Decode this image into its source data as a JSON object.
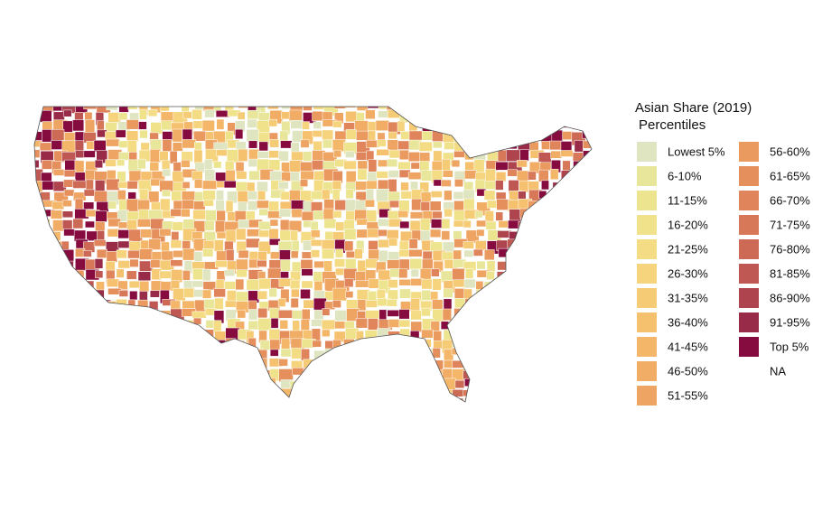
{
  "map": {
    "type": "choropleth",
    "legend": {
      "title": [
        "Asian Share (2019)",
        "Percentiles"
      ],
      "items": [
        {
          "label": "Lowest 5%",
          "color": "#dfe5c0"
        },
        {
          "label": "6-10%",
          "color": "#e8e69a"
        },
        {
          "label": "11-15%",
          "color": "#ece48e"
        },
        {
          "label": "16-20%",
          "color": "#f0e28a"
        },
        {
          "label": "21-25%",
          "color": "#f3dc84"
        },
        {
          "label": "26-30%",
          "color": "#f5d47d"
        },
        {
          "label": "31-35%",
          "color": "#f6cb75"
        },
        {
          "label": "36-40%",
          "color": "#f6c16e"
        },
        {
          "label": "41-45%",
          "color": "#f4b769"
        },
        {
          "label": "46-50%",
          "color": "#f1ad65"
        },
        {
          "label": "51-55%",
          "color": "#eea462"
        },
        {
          "label": "56-60%",
          "color": "#ea9a5f"
        },
        {
          "label": "61-65%",
          "color": "#e58f5d"
        },
        {
          "label": "66-70%",
          "color": "#df845b"
        },
        {
          "label": "71-75%",
          "color": "#d77859"
        },
        {
          "label": "76-80%",
          "color": "#cc6a56"
        },
        {
          "label": "81-85%",
          "color": "#bf5852"
        },
        {
          "label": "86-90%",
          "color": "#ae444d"
        },
        {
          "label": "91-95%",
          "color": "#982b47"
        },
        {
          "label": "Top 5%",
          "color": "#860b3e"
        },
        {
          "label": "NA"
        }
      ]
    }
  }
}
